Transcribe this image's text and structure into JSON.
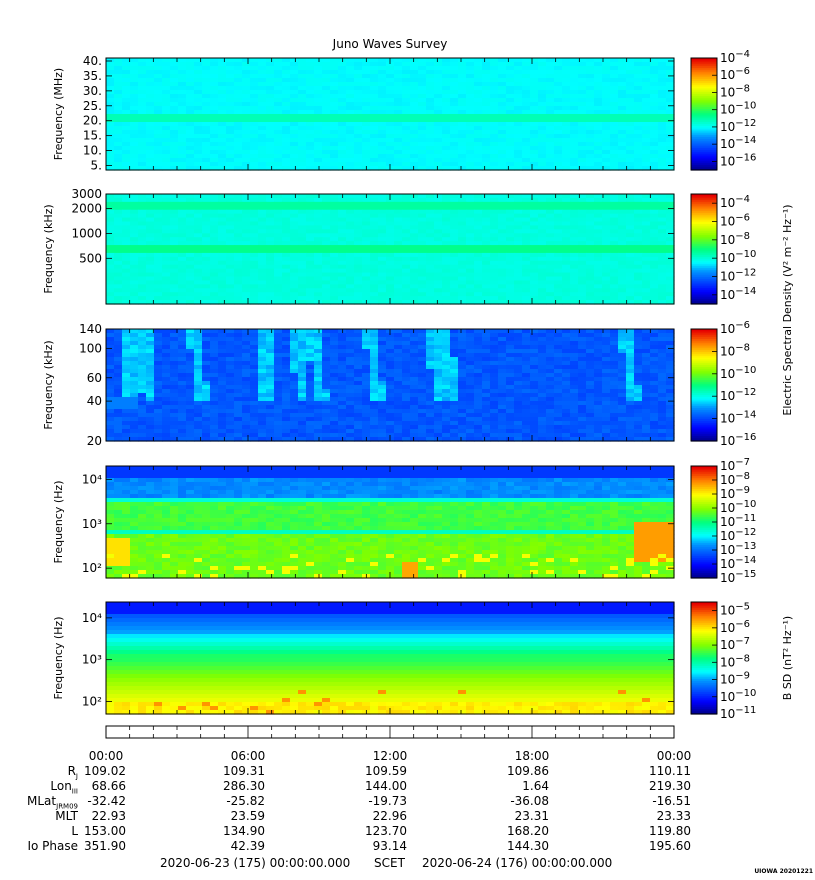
{
  "chart_data": [
    {
      "type": "heatmap",
      "panel": "HFR high",
      "ylabel": "Frequency (MHz)",
      "yscale": "linear",
      "ylim": [
        3.5,
        41
      ],
      "yticks": [
        "40.",
        "35.",
        "30.",
        "25.",
        "20.",
        "15.",
        "10.",
        "5."
      ],
      "ytick_values": [
        40,
        35,
        30,
        25,
        20,
        15,
        10,
        5
      ],
      "colorbar": {
        "type": "log",
        "min_exp": -17,
        "max_exp": -4,
        "tick_exps": [
          -4,
          -6,
          -8,
          -10,
          -12,
          -14,
          -16
        ]
      },
      "bands": [
        {
          "center": 21.3,
          "level": 0.45
        }
      ],
      "base_level": 0.38
    },
    {
      "type": "heatmap",
      "panel": "HFR low",
      "ylabel": "Frequency (kHz)",
      "yscale": "log",
      "ylim": [
        140,
        3000
      ],
      "yticks": [
        "3000",
        "2000",
        "1000",
        "500"
      ],
      "ytick_values": [
        3000,
        2000,
        1000,
        500
      ],
      "colorbar": {
        "type": "log",
        "min_exp": -15,
        "max_exp": -3,
        "tick_exps": [
          -4,
          -6,
          -8,
          -10,
          -12,
          -14
        ]
      },
      "bands": [
        {
          "center": 2200,
          "level": 0.47
        },
        {
          "center": 660,
          "level": 0.49
        }
      ],
      "base_level": 0.41
    },
    {
      "type": "heatmap",
      "panel": "LFR high",
      "ylabel": "Frequency (kHz)",
      "yscale": "log",
      "ylim": [
        20,
        140
      ],
      "yticks": [
        "140",
        "100",
        "60",
        "40",
        "20"
      ],
      "ytick_values": [
        140,
        100,
        60,
        40,
        20
      ],
      "colorbar": {
        "type": "log",
        "min_exp": -16,
        "max_exp": -6,
        "tick_exps": [
          -6,
          -8,
          -10,
          -12,
          -14,
          -16
        ],
        "label": "Electric Spectral Density (V² m⁻² Hz⁻¹)"
      },
      "base_level": 0.22
    },
    {
      "type": "heatmap",
      "panel": "LFR low",
      "ylabel": "Frequency (Hz)",
      "yscale": "log",
      "ylim": [
        60,
        20000
      ],
      "yticks": [
        "10⁴",
        "10³",
        "10²"
      ],
      "ytick_values": [
        10000,
        1000,
        100
      ],
      "colorbar": {
        "type": "log",
        "min_exp": -15,
        "max_exp": -7,
        "tick_exps": [
          -7,
          -8,
          -9,
          -10,
          -11,
          -12,
          -13,
          -14,
          -15
        ]
      }
    },
    {
      "type": "heatmap",
      "panel": "Magnetic",
      "ylabel": "Frequency (Hz)",
      "yscale": "log",
      "ylim": [
        50,
        24000
      ],
      "yticks": [
        "10⁴",
        "10³",
        "10²"
      ],
      "ytick_values": [
        10000,
        1000,
        100
      ],
      "colorbar": {
        "type": "log",
        "min_exp": -11,
        "max_exp": -4.5,
        "tick_exps": [
          -5,
          -6,
          -7,
          -8,
          -9,
          -10,
          -11
        ],
        "label": "B SD (nT² Hz⁻¹)"
      }
    }
  ],
  "title": "Juno Waves Survey",
  "time_axis": {
    "labels": [
      "00:00",
      "06:00",
      "12:00",
      "18:00",
      "00:00"
    ],
    "ephemeris_rows": [
      {
        "label": "R_J",
        "main": "R",
        "sub": "J",
        "values": [
          "109.02",
          "109.31",
          "109.59",
          "109.86",
          "110.11"
        ]
      },
      {
        "label": "Lon_III",
        "main": "Lon",
        "sub": "III",
        "values": [
          "68.66",
          "286.30",
          "144.00",
          "1.64",
          "219.30"
        ]
      },
      {
        "label": "MLat_JRM09",
        "main": "MLat",
        "sub": "JRM09",
        "values": [
          "-32.42",
          "-25.82",
          "-19.73",
          "-36.08",
          "-16.51"
        ]
      },
      {
        "label": "MLT",
        "main": "MLT",
        "sub": "",
        "values": [
          "22.93",
          "23.59",
          "22.96",
          "23.31",
          "23.33"
        ]
      },
      {
        "label": "L",
        "main": "L",
        "sub": "",
        "values": [
          "153.00",
          "134.90",
          "123.70",
          "168.20",
          "119.80"
        ]
      },
      {
        "label": "Io Phase",
        "main": "Io Phase",
        "sub": "",
        "values": [
          "351.90",
          "42.39",
          "93.14",
          "144.30",
          "195.60"
        ]
      }
    ]
  },
  "footer": {
    "start": "2020-06-23 (175) 00:00:00.000",
    "scet": "SCET",
    "end": "2020-06-24 (176) 00:00:00.000"
  },
  "stamp": "UIOWA 20201221"
}
